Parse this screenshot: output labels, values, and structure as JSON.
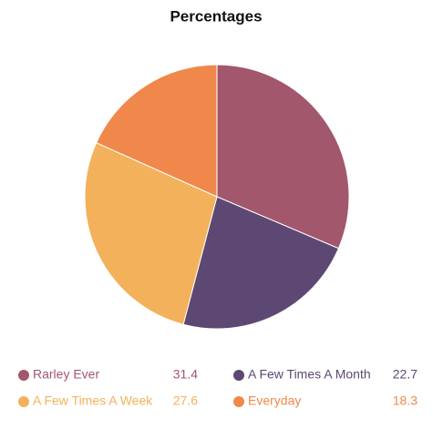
{
  "chart_data": {
    "type": "pie",
    "title": "Percentages",
    "categories": [
      "Rarley Ever",
      "A Few Times A Month",
      "A Few Times A Week",
      "Everyday"
    ],
    "values": [
      31.4,
      22.7,
      27.6,
      18.3
    ],
    "colors": [
      "#a2576c",
      "#5d4873",
      "#f3b15b",
      "#f1884b"
    ]
  }
}
